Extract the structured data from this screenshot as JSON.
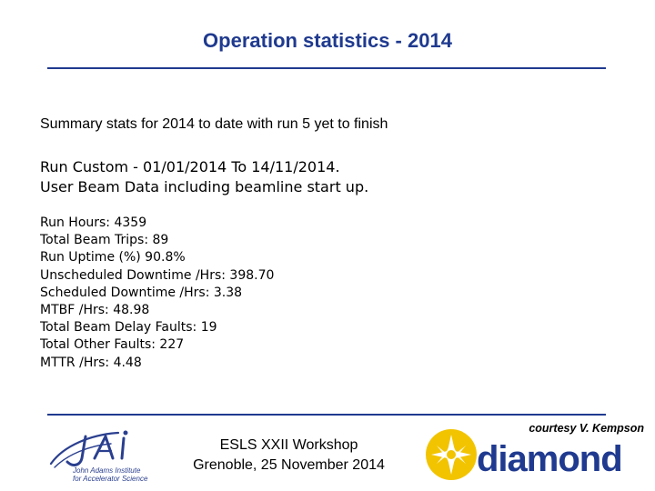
{
  "slide": {
    "title": "Operation statistics - 2014",
    "summary": "Summary stats for 2014 to date with run 5  yet to finish",
    "run_info": [
      "Run Custom - 01/01/2014 To 14/11/2014.",
      "User Beam Data including beamline start up."
    ],
    "stats": [
      "Run Hours: 4359",
      "Total Beam Trips: 89",
      "Run Uptime (%) 90.8%",
      "Unscheduled Downtime /Hrs: 398.70",
      "Scheduled Downtime /Hrs: 3.38",
      "MTBF /Hrs: 48.98",
      "Total Beam Delay Faults: 19",
      "Total Other Faults: 227",
      "MTTR /Hrs: 4.48"
    ]
  },
  "footer": {
    "credit": "courtesy V. Kempson",
    "event_line1": "ESLS XXII Workshop",
    "event_line2": "Grenoble, 25 November 2014",
    "jai_logo": {
      "mark": "JAI",
      "line1": "John Adams Institute",
      "line2": "for Accelerator Science"
    },
    "diamond_logo": {
      "wordmark": "diamond"
    }
  },
  "colors": {
    "title": "#1f3a8f",
    "rule": "#1f3a8f",
    "jai_blue": "#2a3f8f",
    "diamond_blue": "#1f3a8f",
    "diamond_star": "#f2c400"
  }
}
